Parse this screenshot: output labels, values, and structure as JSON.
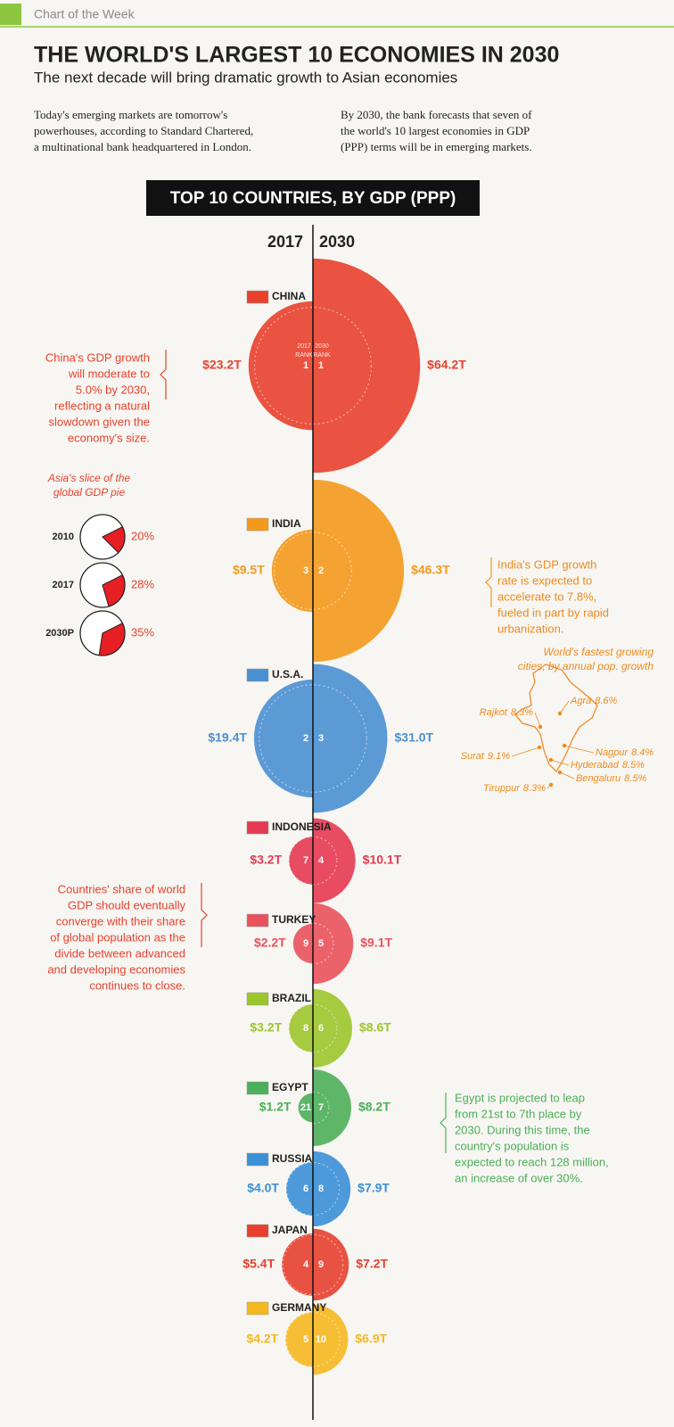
{
  "header": {
    "tag": "Chart of the Week",
    "title": "THE WORLD'S LARGEST 10 ECONOMIES IN 2030",
    "subtitle": "The next decade will bring dramatic growth to Asian economies"
  },
  "intro": [
    [
      "Today's emerging markets are tomorrow's",
      "powerhouses, according to Standard Chartered,",
      "a multinational bank headquartered in London."
    ],
    [
      "By 2030, the bank forecasts that seven of",
      "the world's 10 largest economies in GDP",
      "(PPP) terms will be in emerging markets."
    ]
  ],
  "chart_data": {
    "type": "half-bubble",
    "title": "TOP 10 COUNTRIES, BY GDP (PPP)",
    "categories": [
      "CHINA",
      "INDIA",
      "U.S.A.",
      "INDONESIA",
      "TURKEY",
      "BRAZIL",
      "EGYPT",
      "RUSSIA",
      "JAPAN",
      "GERMANY"
    ],
    "colors": [
      "#e8412e",
      "#f39a1d",
      "#4a90d2",
      "#e53a52",
      "#e9525c",
      "#9cc52c",
      "#4caf5a",
      "#3b8fd6",
      "#e6402f",
      "#f5b820"
    ],
    "rank_labels": [
      [
        "2017",
        "RANK"
      ],
      [
        "2030",
        "RANK"
      ]
    ],
    "series": [
      {
        "name": "2017",
        "values": [
          23.2,
          9.5,
          19.4,
          3.2,
          2.2,
          3.2,
          1.2,
          4.0,
          5.4,
          4.2
        ],
        "value_labels": [
          "$23.2T",
          "$9.5T",
          "$19.4T",
          "$3.2T",
          "$2.2T",
          "$3.2T",
          "$1.2T",
          "$4.0T",
          "$5.4T",
          "$4.2T"
        ],
        "ranks": [
          1,
          3,
          2,
          7,
          9,
          8,
          21,
          6,
          4,
          5
        ]
      },
      {
        "name": "2030",
        "values": [
          64.2,
          46.3,
          31.0,
          10.1,
          9.1,
          8.6,
          8.2,
          7.9,
          7.2,
          6.9
        ],
        "value_labels": [
          "$64.2T",
          "$46.3T",
          "$31.0T",
          "$10.1T",
          "$9.1T",
          "$8.6T",
          "$8.2T",
          "$7.9T",
          "$7.2T",
          "$6.9T"
        ],
        "ranks": [
          1,
          2,
          3,
          4,
          5,
          6,
          7,
          8,
          9,
          10
        ]
      }
    ]
  },
  "annotations": {
    "china": [
      "China's GDP growth",
      "will moderate to",
      "5.0% by 2030,",
      "reflecting a natural",
      "slowdown given the",
      "economy's size."
    ],
    "india": [
      "India's GDP growth",
      "rate is expected to",
      "accelerate to 7.8%,",
      "fueled in part by rapid",
      "urbanization."
    ],
    "share": [
      "Countries' share of world",
      "GDP should eventually",
      "converge with their share",
      "of global population as the",
      "divide between advanced",
      "and developing economies",
      "continues to close."
    ],
    "egypt": [
      "Egypt is projected to leap",
      "from 21st to 7th place by",
      "2030. During this time, the",
      "country's population is",
      "expected to reach 128 million,",
      "an increase of over 30%."
    ]
  },
  "asia_pie": {
    "title": [
      "Asia's slice of the",
      "global GDP pie"
    ],
    "categories": [
      "2010",
      "2017",
      "2030P"
    ],
    "values": [
      20,
      28,
      35
    ],
    "value_labels": [
      "20%",
      "28%",
      "35%"
    ]
  },
  "cities": {
    "title": [
      "World's fastest growing",
      "cities, by annual pop. growth"
    ],
    "names": [
      "Agra",
      "Rajkot",
      "Surat",
      "Nagpur",
      "Hyderabad",
      "Bengaluru",
      "Tiruppur"
    ],
    "values": [
      8.6,
      8.3,
      9.1,
      8.4,
      8.5,
      8.5,
      8.3
    ],
    "value_labels": [
      "8.6%",
      "8.3%",
      "9.1%",
      "8.4%",
      "8.5%",
      "8.5%",
      "8.3%"
    ]
  }
}
